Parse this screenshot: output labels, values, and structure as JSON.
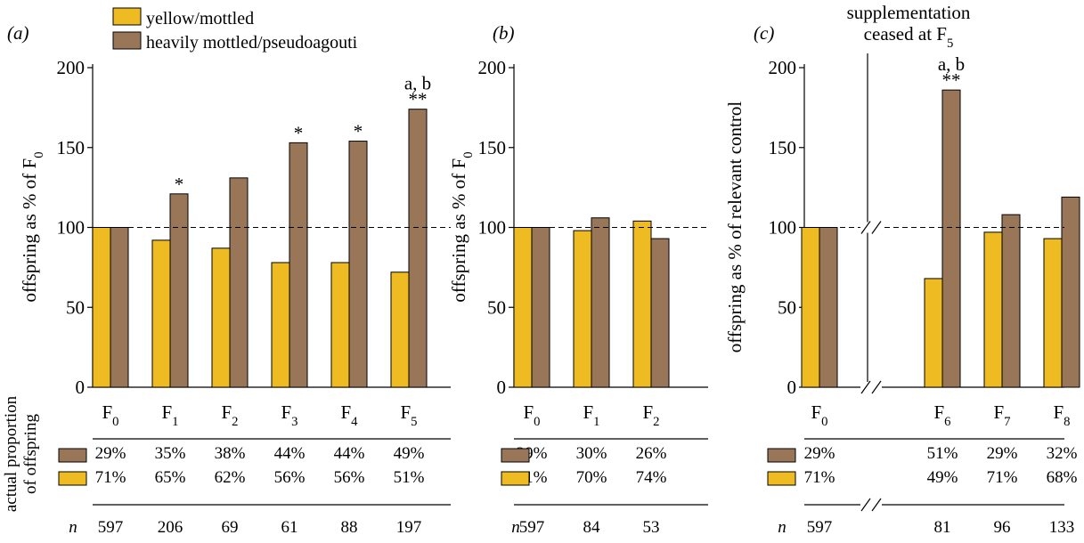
{
  "legend": [
    {
      "name": "yellow/mottled",
      "color": "#eebb22"
    },
    {
      "name": "heavily mottled/pseudoagouti",
      "color": "#9a7658"
    }
  ],
  "table": {
    "row_label": "actual proportion of offspring",
    "n_label": "n"
  },
  "chart_data": [
    {
      "type": "bar",
      "panel_label": "(a)",
      "ylabel": "offspring as % of F0",
      "ylim": [
        0,
        200
      ],
      "yticks": [
        0,
        50,
        100,
        150,
        200
      ],
      "reference_line": 100,
      "categories": [
        "F0",
        "F1",
        "F2",
        "F3",
        "F4",
        "F5"
      ],
      "series": [
        {
          "name": "yellow/mottled",
          "values": [
            100,
            92,
            87,
            78,
            78,
            72
          ]
        },
        {
          "name": "heavily mottled/pseudoagouti",
          "values": [
            100,
            121,
            131,
            153,
            154,
            174
          ]
        }
      ],
      "annotations": [
        "",
        "*",
        "",
        "*",
        "*",
        "**"
      ],
      "extra_annotations": [
        "",
        "",
        "",
        "",
        "",
        "a, b"
      ],
      "proportion_heavily_mottled": [
        "29%",
        "35%",
        "38%",
        "44%",
        "44%",
        "49%"
      ],
      "proportion_yellow": [
        "71%",
        "65%",
        "62%",
        "56%",
        "56%",
        "51%"
      ],
      "n": [
        "597",
        "206",
        "69",
        "61",
        "88",
        "197"
      ]
    },
    {
      "type": "bar",
      "panel_label": "(b)",
      "ylabel": "offspring as % of F0",
      "ylim": [
        0,
        200
      ],
      "yticks": [
        0,
        50,
        100,
        150,
        200
      ],
      "reference_line": 100,
      "categories": [
        "F0",
        "F1",
        "F2"
      ],
      "series": [
        {
          "name": "yellow/mottled",
          "values": [
            100,
            98,
            104
          ]
        },
        {
          "name": "heavily mottled/pseudoagouti",
          "values": [
            100,
            106,
            93
          ]
        }
      ],
      "proportion_heavily_mottled": [
        "29%",
        "30%",
        "26%"
      ],
      "proportion_yellow": [
        "71%",
        "70%",
        "74%"
      ],
      "n": [
        "597",
        "84",
        "53"
      ]
    },
    {
      "type": "bar",
      "panel_label": "(c)",
      "title": "supplementation ceased at F5",
      "ylabel": "offspring as % of relevant control",
      "ylim": [
        0,
        200
      ],
      "yticks": [
        0,
        50,
        100,
        150,
        200
      ],
      "reference_line": 100,
      "categories": [
        "F0",
        "F6",
        "F7",
        "F8"
      ],
      "series": [
        {
          "name": "yellow/mottled",
          "values": [
            100,
            68,
            97,
            93
          ]
        },
        {
          "name": "heavily mottled/pseudoagouti",
          "values": [
            100,
            186,
            108,
            119
          ]
        }
      ],
      "annotations": [
        "",
        "**",
        "",
        ""
      ],
      "extra_annotations": [
        "",
        "a, b",
        "",
        ""
      ],
      "proportion_heavily_mottled": [
        "29%",
        "51%",
        "29%",
        "32%"
      ],
      "proportion_yellow": [
        "71%",
        "49%",
        "71%",
        "68%"
      ],
      "n": [
        "597",
        "81",
        "96",
        "133"
      ]
    }
  ]
}
